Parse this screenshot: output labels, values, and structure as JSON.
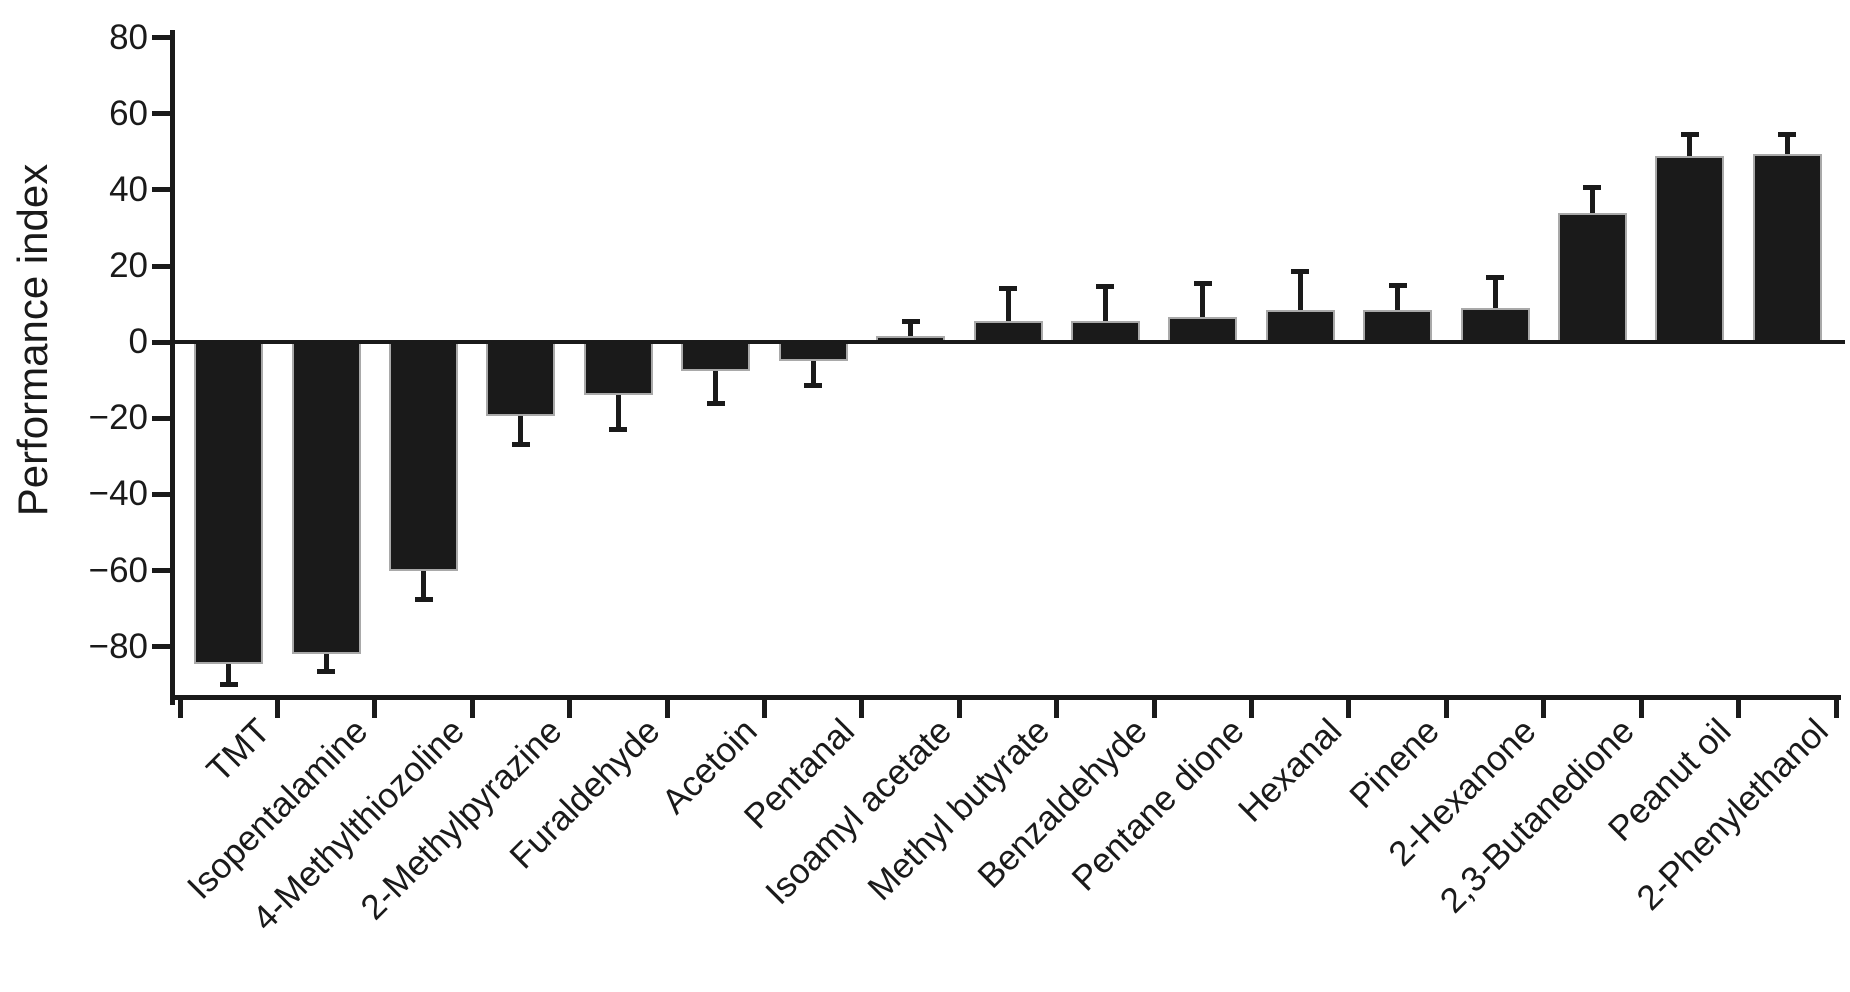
{
  "figure": {
    "background": "#ffffff",
    "ink_color": "#1a1a1a",
    "bar_fill": "#1a1a1a",
    "bar_edge": "#a9a9a9"
  },
  "chart_data": {
    "type": "bar",
    "title": "",
    "xlabel": "",
    "ylabel": "Performance index",
    "ylim": [
      -94,
      82
    ],
    "yticks": [
      80,
      60,
      40,
      20,
      0,
      -20,
      -40,
      -60,
      -80
    ],
    "ytick_labels": [
      "80",
      "60",
      "40",
      "20",
      "0",
      "−20",
      "−40",
      "−60",
      "−80"
    ],
    "grid": false,
    "legend": "none",
    "bar_color": "#1a1a1a",
    "error_bar_style": "one-sided whisker with cap, extending away from zero",
    "zero_line": true,
    "categories": [
      "TMT",
      "Isopentalamine",
      "4-Methylthiozoline",
      "2-Methylpyrazine",
      "Furaldehyde",
      "Acetoin",
      "Pentanal",
      "Isoamyl acetate",
      "Methyl butyrate",
      "Benzaldehyde",
      "Pentane dione",
      "Hexanal",
      "Pinene",
      "2-Hexanone",
      "2,3-Butanedione",
      "Peanut oil",
      "2-Phenylethanol"
    ],
    "values": [
      -84.5,
      -82,
      -60,
      -19.5,
      -14,
      -7.5,
      -5,
      1.5,
      5.5,
      5.5,
      6.5,
      8.5,
      8.5,
      9,
      34,
      49,
      49.5
    ],
    "errors": [
      5.5,
      4.5,
      7.5,
      7.5,
      9,
      8.5,
      6.5,
      4,
      8.5,
      9,
      9,
      10,
      6.5,
      8,
      6.5,
      5.5,
      5
    ]
  }
}
